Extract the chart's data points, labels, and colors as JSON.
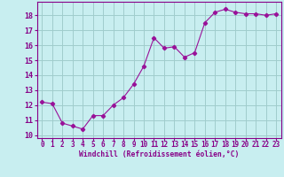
{
  "x": [
    0,
    1,
    2,
    3,
    4,
    5,
    6,
    7,
    8,
    9,
    10,
    11,
    12,
    13,
    14,
    15,
    16,
    17,
    18,
    19,
    20,
    21,
    22,
    23
  ],
  "y": [
    12.2,
    12.1,
    10.8,
    10.6,
    10.4,
    11.3,
    11.3,
    12.0,
    12.5,
    13.4,
    14.6,
    16.5,
    15.8,
    15.9,
    15.2,
    15.5,
    17.5,
    18.2,
    18.4,
    18.2,
    18.1,
    18.1,
    18.0,
    18.1
  ],
  "line_color": "#991199",
  "marker": "D",
  "marker_size": 2.2,
  "background_color": "#c8eef0",
  "grid_color": "#a0cccc",
  "xlabel": "Windchill (Refroidissement éolien,°C)",
  "ylabel": "",
  "xlim": [
    -0.5,
    23.5
  ],
  "ylim": [
    9.8,
    18.9
  ],
  "yticks": [
    10,
    11,
    12,
    13,
    14,
    15,
    16,
    17,
    18
  ],
  "xticks": [
    0,
    1,
    2,
    3,
    4,
    5,
    6,
    7,
    8,
    9,
    10,
    11,
    12,
    13,
    14,
    15,
    16,
    17,
    18,
    19,
    20,
    21,
    22,
    23
  ],
  "tick_color": "#880088",
  "label_color": "#880088",
  "font_family": "monospace",
  "xlabel_fontsize": 5.8,
  "tick_fontsize": 5.5,
  "ytick_fontsize": 6.0
}
